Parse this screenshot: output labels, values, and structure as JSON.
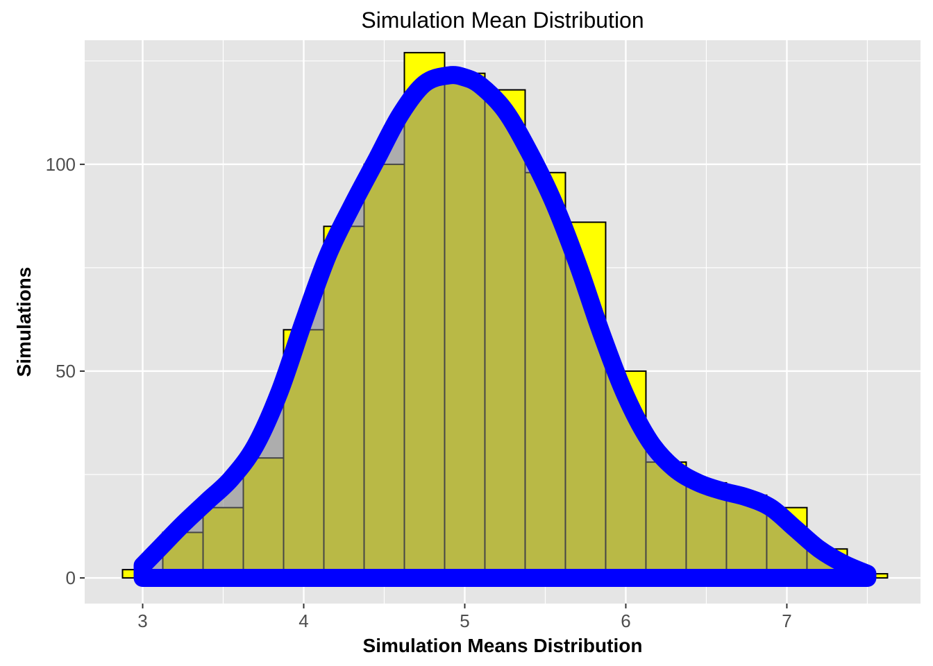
{
  "chart_data": {
    "type": "histogram",
    "title": "Simulation Mean Distribution",
    "xlabel": "Simulation Means Distribution",
    "ylabel": "Simulations",
    "xlim": [
      2.64,
      7.83
    ],
    "ylim": [
      -6.2,
      130
    ],
    "x_ticks": [
      3,
      4,
      5,
      6,
      7
    ],
    "y_ticks": [
      0,
      50,
      100
    ],
    "x_tick_labels": [
      "3",
      "4",
      "5",
      "6",
      "7"
    ],
    "y_tick_labels": [
      "0",
      "50",
      "100"
    ],
    "grid": true,
    "bins": {
      "width": 0.25,
      "centers": [
        3.0,
        3.25,
        3.5,
        3.75,
        4.0,
        4.25,
        4.5,
        4.75,
        5.0,
        5.25,
        5.5,
        5.75,
        6.0,
        6.25,
        6.5,
        6.75,
        7.0,
        7.25,
        7.5
      ],
      "counts": [
        2,
        11,
        17,
        29,
        60,
        85,
        100,
        127,
        122,
        118,
        98,
        86,
        50,
        28,
        23,
        20,
        17,
        7,
        1
      ]
    },
    "density_curve": {
      "x": [
        3.0,
        3.1,
        3.25,
        3.4,
        3.55,
        3.7,
        3.85,
        4.0,
        4.15,
        4.3,
        4.45,
        4.6,
        4.75,
        4.9,
        5.0,
        5.1,
        5.25,
        5.4,
        5.55,
        5.7,
        5.85,
        6.0,
        6.15,
        6.3,
        6.45,
        6.6,
        6.75,
        6.9,
        7.05,
        7.2,
        7.35,
        7.5
      ],
      "y": [
        3,
        7,
        13,
        18.5,
        24,
        32,
        45,
        62,
        78,
        90,
        101,
        112,
        119.5,
        121.5,
        121,
        119,
        113,
        103,
        91,
        76,
        59,
        44,
        33,
        26.5,
        23,
        21,
        19.5,
        17,
        12,
        7,
        3.5,
        1
      ]
    },
    "colors": {
      "panel_background": "#e5e5e5",
      "grid_line": "#ffffff",
      "histogram_fill": "#ffff00",
      "histogram_outline": "#000000",
      "density_fill": "#808080",
      "density_fill_opacity": 0.55,
      "density_line": "#0000ff"
    }
  }
}
